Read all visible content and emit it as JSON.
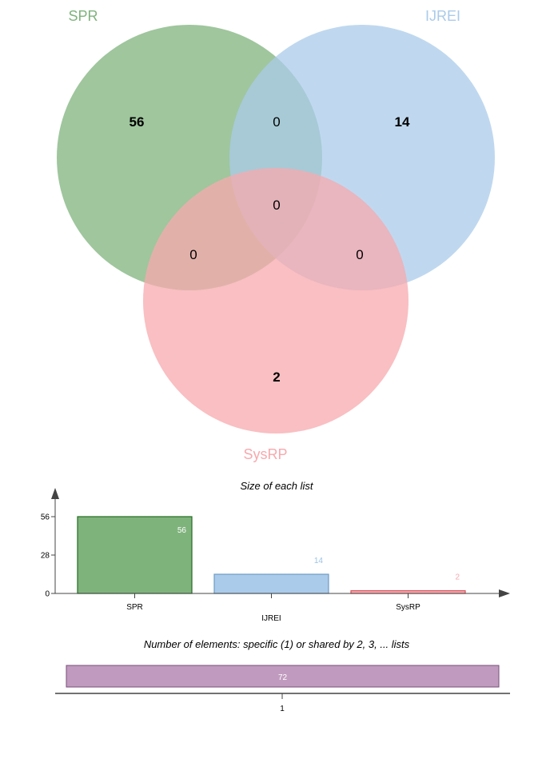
{
  "chart_data": [
    {
      "type": "venn",
      "sets": [
        {
          "name": "SPR",
          "color": "#7fb37c"
        },
        {
          "name": "IJREI",
          "color": "#aacbea"
        },
        {
          "name": "SysRP",
          "color": "#f7a9ae"
        }
      ],
      "regions": {
        "SPR_only": 56,
        "IJREI_only": 14,
        "SysRP_only": 2,
        "SPR_IJREI": 0,
        "SPR_SysRP": 0,
        "IJREI_SysRP": 0,
        "all": 0
      }
    },
    {
      "type": "bar",
      "title": "Size of each list",
      "categories": [
        "SPR",
        "IJREI",
        "SysRP"
      ],
      "values": [
        56,
        14,
        2
      ],
      "colors": [
        "#7fb37c",
        "#aacbea",
        "#f7a9ae"
      ],
      "edge_colors": [
        "#226b22",
        "#6f9cc4",
        "#d9535c"
      ],
      "label_colors": [
        "#ffffff",
        "#9dc3e6",
        "#f7a9ae"
      ],
      "yticks": [
        0,
        28,
        56
      ],
      "ylim": [
        0,
        64
      ]
    },
    {
      "type": "bar",
      "orientation": "horizontal",
      "title": "Number of elements: specific (1) or shared by 2, 3, ... lists",
      "categories": [
        "1"
      ],
      "values": [
        72
      ],
      "color": "#c09bbf",
      "edge_color": "#7a4f79"
    }
  ]
}
